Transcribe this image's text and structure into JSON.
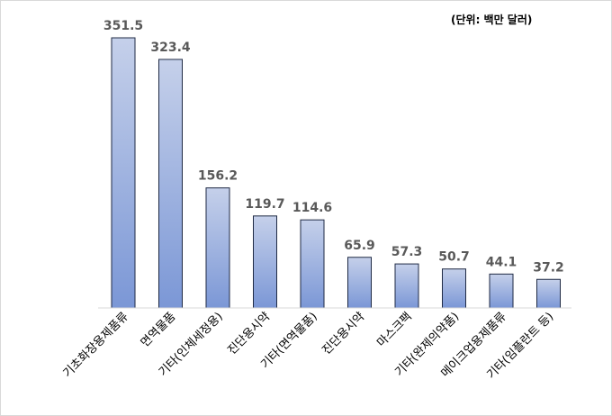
{
  "unit_note": "(단위: 백만 달러)",
  "colors": {
    "bar_top": "#c5d0ea",
    "bar_bottom": "#7b97d6",
    "bar_stroke": "#1f2a44",
    "axis": "#d9d9d9",
    "value_label": "#595959"
  },
  "chart_data": {
    "type": "bar",
    "title": "",
    "xlabel": "",
    "ylabel": "",
    "categories": [
      "기초화장용제품류",
      "면역물품",
      "기타(인체세정용)",
      "진단용시약",
      "기타(면역물품)",
      "진단용시약",
      "마스크팩",
      "기타(완제의약품)",
      "메이크업용제품류",
      "기타(임플란트 등)"
    ],
    "values": [
      351.5,
      323.4,
      156.2,
      119.7,
      114.6,
      65.9,
      57.3,
      50.7,
      44.1,
      37.2
    ],
    "ylim": [
      0,
      351.5
    ],
    "grid": false,
    "legend": "none"
  }
}
